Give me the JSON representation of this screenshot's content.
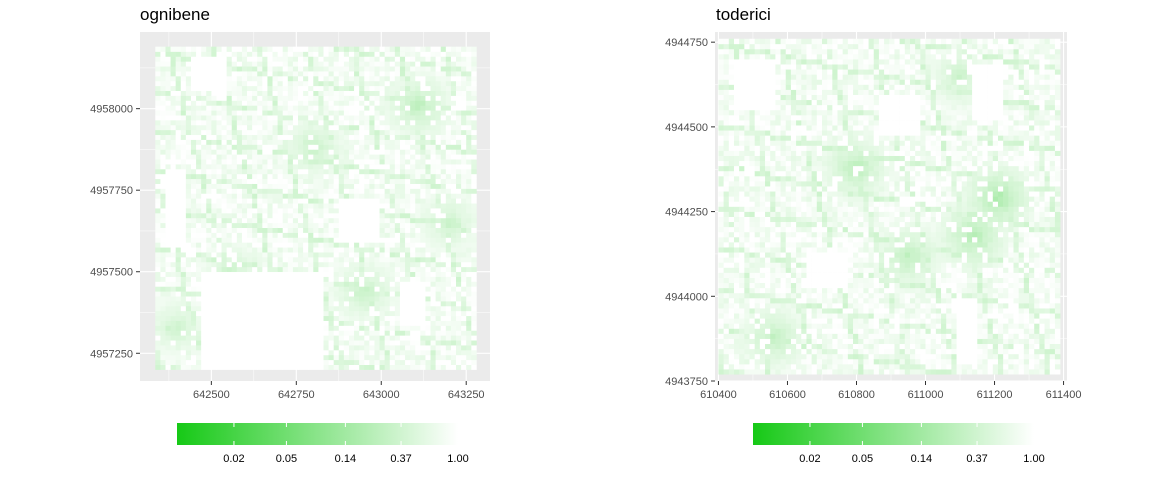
{
  "colors": {
    "panel_background": "#ebebeb",
    "grid": "#ffffff",
    "low_color": "#16c916",
    "high_color": "#ffffff"
  },
  "chart_data": [
    {
      "type": "heatmap",
      "title": "ognibene",
      "xlabel": "",
      "ylabel": "",
      "xlim": [
        642290,
        643320
      ],
      "ylim": [
        4957165,
        4958235
      ],
      "x_ticks": [
        642500,
        642750,
        643000,
        643250
      ],
      "x_tick_labels": [
        "642500",
        "642750",
        "643000",
        "643250"
      ],
      "y_ticks": [
        4957250,
        4957500,
        4957750,
        4958000
      ],
      "y_tick_labels": [
        "4957250",
        "4957500",
        "4957750",
        "4958000"
      ],
      "grid": true,
      "data_extent": {
        "x": [
          642335,
          643280
        ],
        "y": [
          4957200,
          4958190
        ]
      },
      "cell_size": 15,
      "empty_regions": [
        {
          "x": [
            642470,
            642830
          ],
          "y": [
            4957200,
            4957500
          ]
        },
        {
          "x": [
            642360,
            642420
          ],
          "y": [
            4957580,
            4957820
          ]
        },
        {
          "x": [
            642440,
            642540
          ],
          "y": [
            4958060,
            4958160
          ]
        },
        {
          "x": [
            642880,
            642990
          ],
          "y": [
            4957590,
            4957720
          ]
        },
        {
          "x": [
            643050,
            643130
          ],
          "y": [
            4957340,
            4957470
          ]
        }
      ],
      "hotspots": [
        {
          "x": 643110,
          "y": 4958010,
          "value": 0.2
        },
        {
          "x": 642950,
          "y": 4957440,
          "value": 0.25
        },
        {
          "x": 642560,
          "y": 4957500,
          "value": 0.3
        },
        {
          "x": 642800,
          "y": 4957880,
          "value": 0.25
        },
        {
          "x": 643200,
          "y": 4957650,
          "value": 0.28
        },
        {
          "x": 642400,
          "y": 4957330,
          "value": 0.3
        }
      ],
      "colorbar": {
        "scale": "log",
        "range": [
          0.0074,
          1.0
        ],
        "breaks": [
          0.02,
          0.05,
          0.14,
          0.37,
          1.0
        ],
        "break_labels": [
          "0.02",
          "0.05",
          "0.14",
          "0.37",
          "1.00"
        ],
        "position": "bottom"
      }
    },
    {
      "type": "heatmap",
      "title": "toderici",
      "xlabel": "",
      "ylabel": "",
      "xlim": [
        610390,
        611410
      ],
      "ylim": [
        4943750,
        4944780
      ],
      "x_ticks": [
        610400,
        610600,
        610800,
        611000,
        611200,
        611400
      ],
      "x_tick_labels": [
        "610400",
        "610600",
        "610800",
        "611000",
        "611200",
        "611400"
      ],
      "y_ticks": [
        4943750,
        4944000,
        4944250,
        4944500,
        4944750
      ],
      "y_tick_labels": [
        "4943750",
        "4944000",
        "4944250",
        "4944500",
        "4944750"
      ],
      "grid": true,
      "data_extent": {
        "x": [
          610400,
          611390
        ],
        "y": [
          4943770,
          4944760
        ]
      },
      "cell_size": 15,
      "empty_regions": [
        {
          "x": [
            610450,
            610560
          ],
          "y": [
            4944550,
            4944700
          ]
        },
        {
          "x": [
            610660,
            610780
          ],
          "y": [
            4944020,
            4944130
          ]
        },
        {
          "x": [
            610870,
            610990
          ],
          "y": [
            4944480,
            4944600
          ]
        },
        {
          "x": [
            611140,
            611230
          ],
          "y": [
            4944520,
            4944690
          ]
        },
        {
          "x": [
            611090,
            611150
          ],
          "y": [
            4943800,
            4944000
          ]
        }
      ],
      "hotspots": [
        {
          "x": 611210,
          "y": 4944290,
          "value": 0.12
        },
        {
          "x": 611140,
          "y": 4944180,
          "value": 0.14
        },
        {
          "x": 610800,
          "y": 4944380,
          "value": 0.18
        },
        {
          "x": 610950,
          "y": 4944120,
          "value": 0.2
        },
        {
          "x": 610560,
          "y": 4943880,
          "value": 0.22
        },
        {
          "x": 611100,
          "y": 4944650,
          "value": 0.28
        }
      ],
      "colorbar": {
        "scale": "log",
        "range": [
          0.0074,
          1.0
        ],
        "breaks": [
          0.02,
          0.05,
          0.14,
          0.37,
          1.0
        ],
        "break_labels": [
          "0.02",
          "0.05",
          "0.14",
          "0.37",
          "1.00"
        ],
        "position": "bottom"
      }
    }
  ]
}
